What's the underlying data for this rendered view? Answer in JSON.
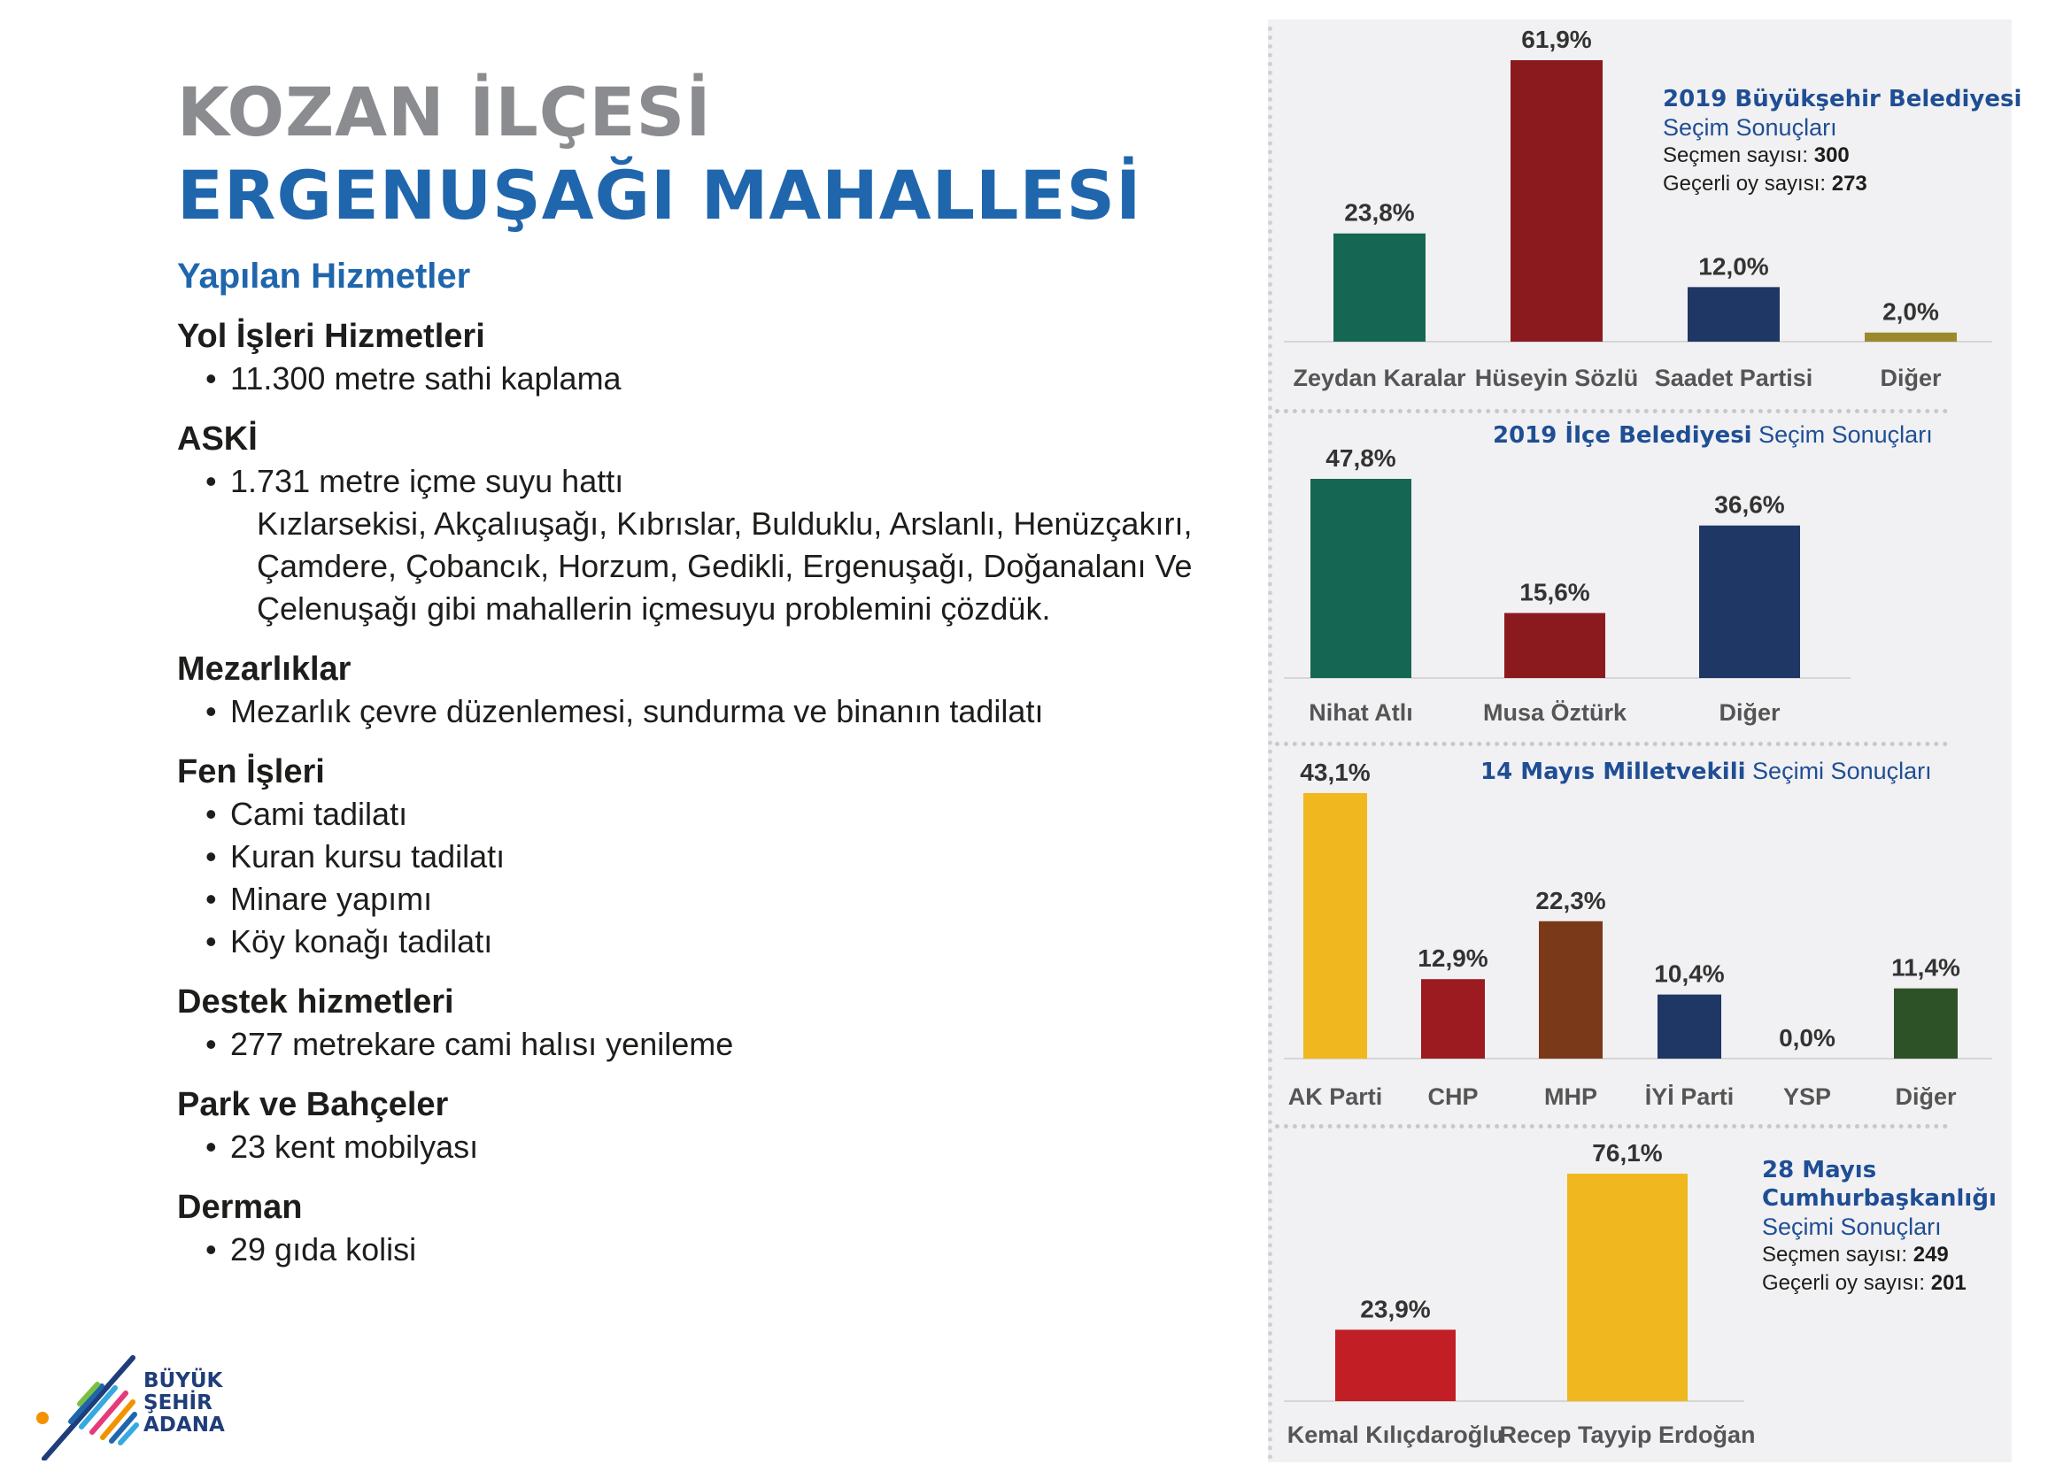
{
  "header": {
    "title_line1": "KOZAN İLÇESİ",
    "title_line2": "ERGENUŞAĞI MAHALLESİ",
    "services_heading": "Yapılan Hizmetler"
  },
  "services": [
    {
      "title": "Yol İşleri Hizmetleri",
      "items": [
        "11.300 metre sathi kaplama"
      ],
      "continuation": []
    },
    {
      "title": "ASKİ",
      "items": [
        "1.731 metre içme suyu hattı"
      ],
      "continuation": [
        "Kızlarsekisi, Akçalıuşağı, Kıbrıslar, Bulduklu, Arslanlı, Henüzçakırı,",
        "Çamdere, Çobancık, Horzum, Gedikli, Ergenuşağı, Doğanalanı Ve",
        "Çelenuşağı gibi mahallerin içmesuyu problemini çözdük."
      ]
    },
    {
      "title": "Mezarlıklar",
      "items": [
        "Mezarlık çevre düzenlemesi, sundurma ve binanın tadilatı"
      ],
      "continuation": []
    },
    {
      "title": "Fen İşleri",
      "items": [
        "Cami tadilatı",
        "Kuran kursu tadilatı",
        "Minare yapımı",
        "Köy konağı tadilatı"
      ],
      "continuation": []
    },
    {
      "title": "Destek hizmetleri",
      "items": [
        "277 metrekare cami halısı yenileme"
      ],
      "continuation": []
    },
    {
      "title": "Park ve Bahçeler",
      "items": [
        "23 kent mobilyası"
      ],
      "continuation": []
    },
    {
      "title": "Derman",
      "items": [
        "29 gıda kolisi"
      ],
      "continuation": []
    }
  ],
  "bullet": "•",
  "logo": {
    "line1": "BÜYÜK",
    "line2": "ŞEHİR",
    "line3": "ADANA"
  },
  "info_boxes": {
    "metro": {
      "title_bold": "2019 Büyükşehir Belediyesi",
      "title_rest": "Seçim Sonuçları",
      "voters_label": "Seçmen sayısı:",
      "voters": "300",
      "valid_label": "Geçerli oy sayısı:",
      "valid": "273"
    },
    "district": {
      "title_bold": "2019 İlçe Belediyesi",
      "title_rest": "Seçim Sonuçları"
    },
    "parliament": {
      "title_bold": "14 Mayıs Milletvekili",
      "title_rest": "Seçimi Sonuçları"
    },
    "president": {
      "title_bold1": "28 Mayıs",
      "title_bold2": "Cumhurbaşkanlığı",
      "title_rest": "Seçimi Sonuçları",
      "voters_label": "Seçmen sayısı:",
      "voters": "249",
      "valid_label": "Geçerli oy sayısı:",
      "valid": "201"
    }
  },
  "chart_data": [
    {
      "type": "bar",
      "title": "2019 Büyükşehir Belediyesi Seçim Sonuçları",
      "categories": [
        "Zeydan Karalar",
        "Hüseyin Sözlü",
        "Saadet Partisi",
        "Diğer"
      ],
      "values": [
        23.8,
        61.9,
        12.0,
        2.0
      ],
      "labels": [
        "23,8%",
        "61,9%",
        "12,0%",
        "2,0%"
      ],
      "colors": [
        "#156652",
        "#8b1a1e",
        "#1e3764",
        "#9a8a2c"
      ]
    },
    {
      "type": "bar",
      "title": "2019 İlçe Belediyesi Seçim Sonuçları",
      "categories": [
        "Nihat Atlı",
        "Musa Öztürk",
        "Diğer"
      ],
      "values": [
        47.8,
        15.6,
        36.6
      ],
      "labels": [
        "47,8%",
        "15,6%",
        "36,6%"
      ],
      "colors": [
        "#156652",
        "#8b1a1e",
        "#1e3764"
      ]
    },
    {
      "type": "bar",
      "title": "14 Mayıs Milletvekili Seçimi Sonuçları",
      "categories": [
        "AK Parti",
        "CHP",
        "MHP",
        "İYİ Parti",
        "YSP",
        "Diğer"
      ],
      "values": [
        43.1,
        12.9,
        22.3,
        10.4,
        0.0,
        11.4
      ],
      "labels": [
        "43,1%",
        "12,9%",
        "22,3%",
        "10,4%",
        "0,0%",
        "11,4%"
      ],
      "colors": [
        "#f0b81e",
        "#9b1b20",
        "#7a3a1a",
        "#1e3764",
        "#7a3a8a",
        "#2e5228"
      ]
    },
    {
      "type": "bar",
      "title": "28 Mayıs Cumhurbaşkanlığı Seçimi Sonuçları",
      "categories": [
        "Kemal Kılıçdaroğlu",
        "Recep Tayyip Erdoğan"
      ],
      "values": [
        23.9,
        76.1
      ],
      "labels": [
        "23,9%",
        "76,1%"
      ],
      "colors": [
        "#c21e25",
        "#f0b81e"
      ]
    }
  ]
}
